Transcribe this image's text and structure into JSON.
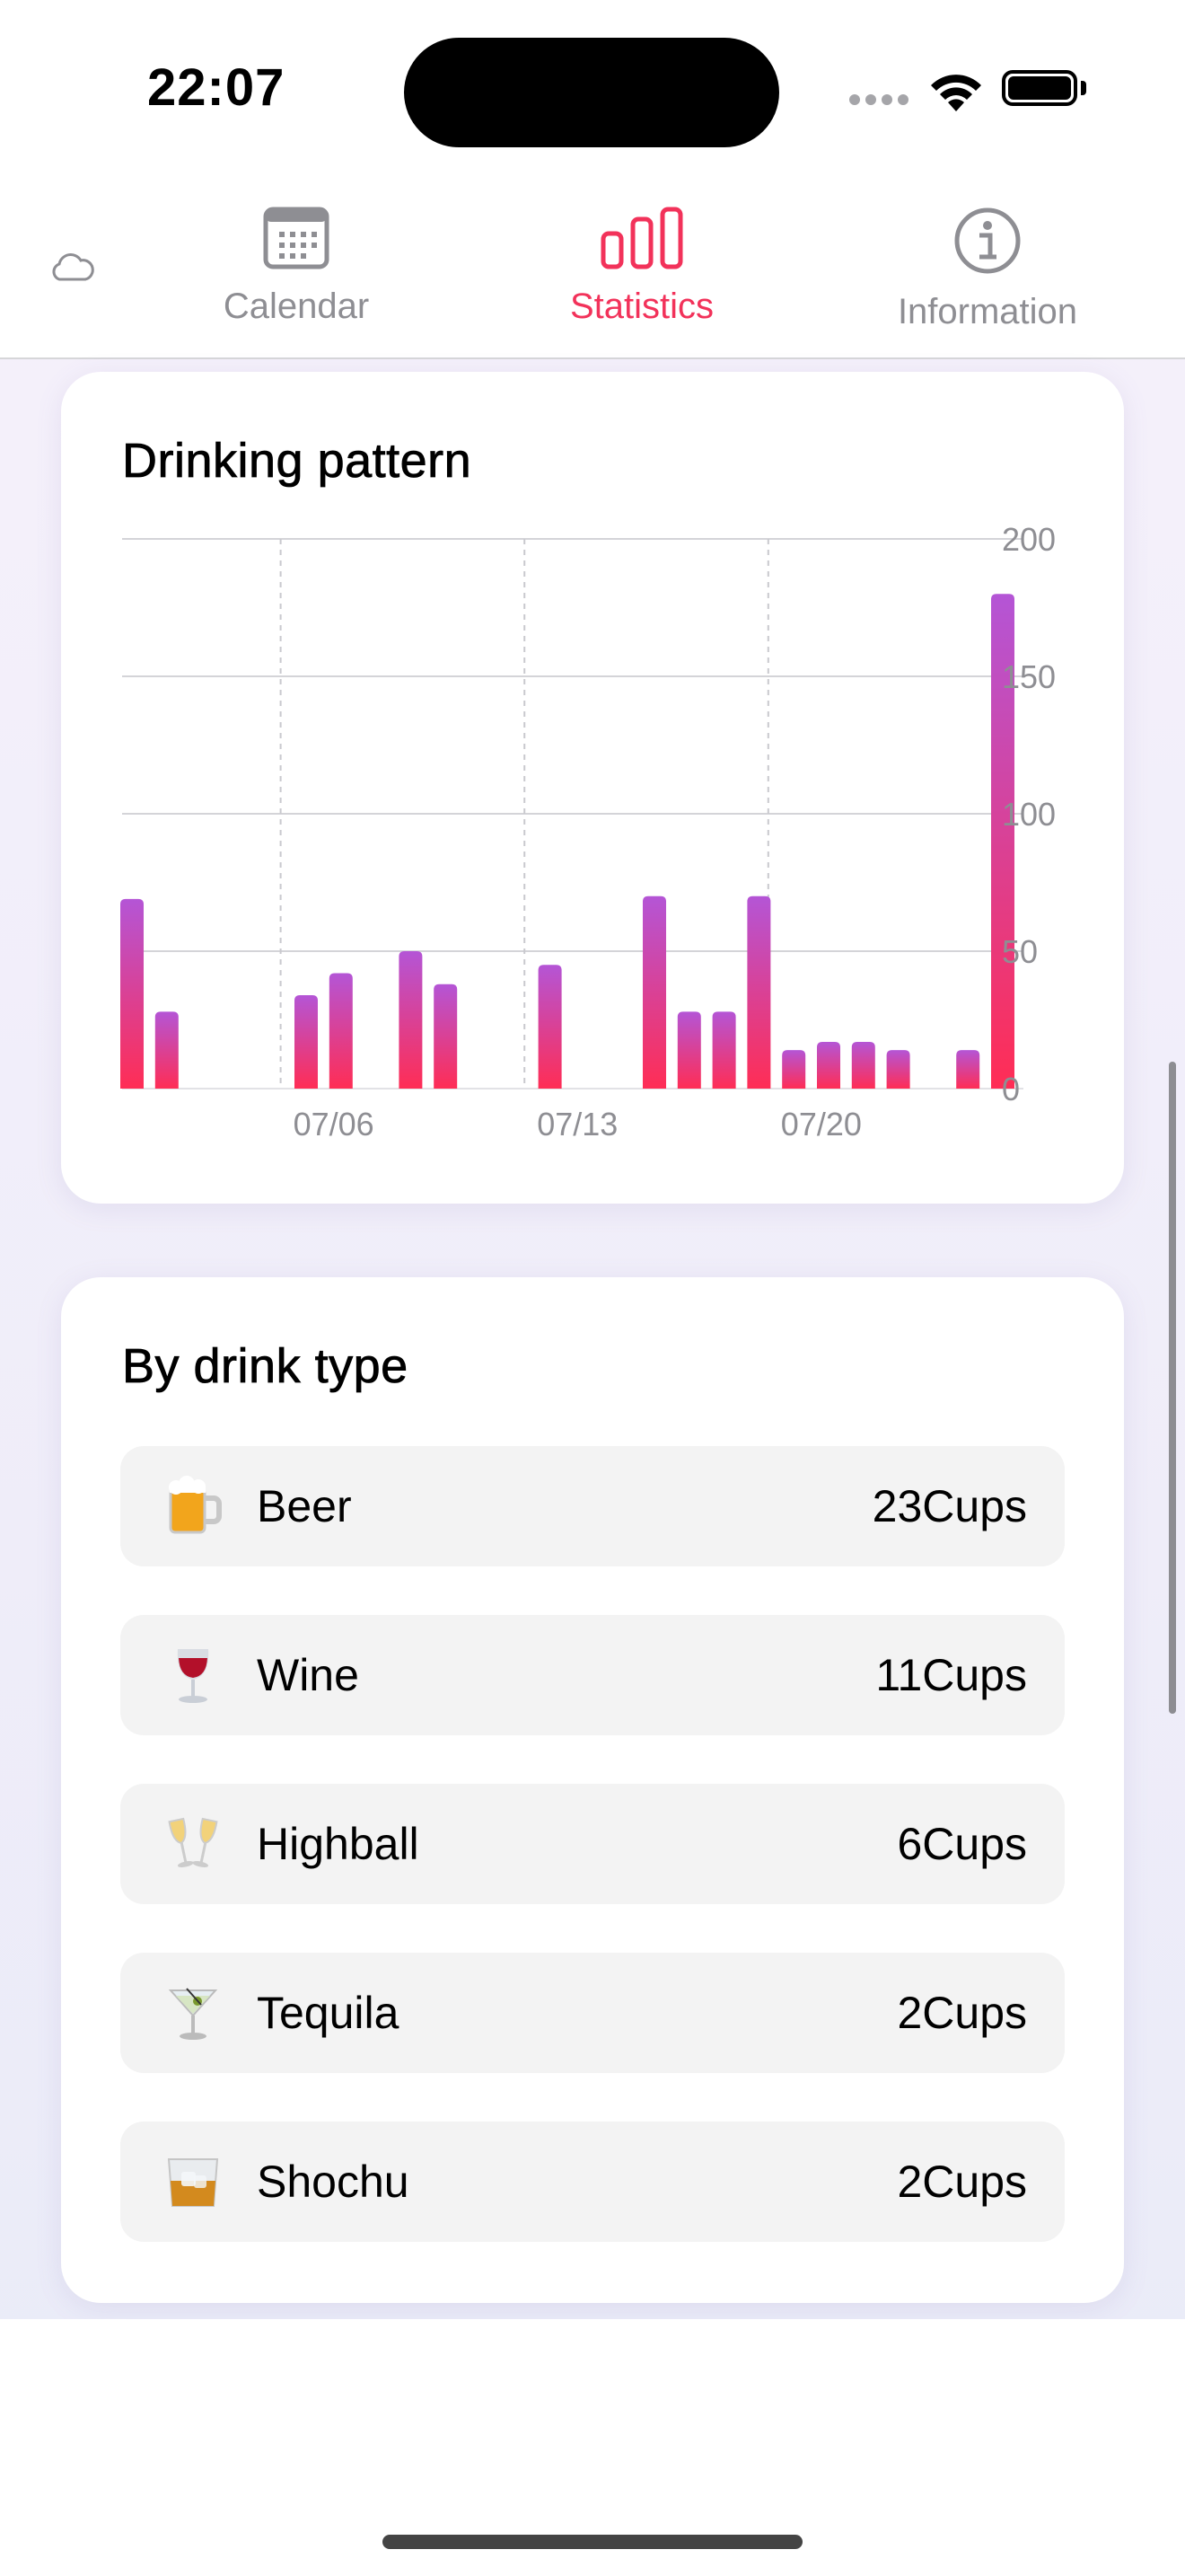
{
  "status": {
    "time": "22:07"
  },
  "tabs": [
    {
      "label": "Calendar",
      "icon": "calendar-icon",
      "active": false
    },
    {
      "label": "Statistics",
      "icon": "bar-chart-icon",
      "active": true
    },
    {
      "label": "Information",
      "icon": "info-icon",
      "active": false
    }
  ],
  "colors": {
    "accent": "#f2325a",
    "bar_top": "#b455d6",
    "bar_bottom": "#ff2d55"
  },
  "pattern": {
    "title": "Drinking pattern"
  },
  "chart_data": {
    "type": "bar",
    "title": "Drinking pattern",
    "x_tick_labels": [
      "07/06",
      "07/13",
      "07/20"
    ],
    "y_ticks": [
      "200",
      "150",
      "100",
      "50",
      "0"
    ],
    "ylim": [
      0,
      200
    ],
    "y_axis_side": "right",
    "grid": true,
    "dates": [
      "07/01",
      "07/02",
      "07/03",
      "07/04",
      "07/05",
      "07/06",
      "07/07",
      "07/08",
      "07/09",
      "07/10",
      "07/11",
      "07/12",
      "07/13",
      "07/14",
      "07/15",
      "07/16",
      "07/17",
      "07/18",
      "07/19",
      "07/20",
      "07/21",
      "07/22",
      "07/23",
      "07/24",
      "07/25",
      "07/26"
    ],
    "values": [
      69,
      28,
      0,
      0,
      0,
      34,
      42,
      0,
      50,
      38,
      0,
      0,
      45,
      0,
      0,
      70,
      28,
      28,
      70,
      14,
      17,
      17,
      14,
      0,
      14,
      180
    ]
  },
  "types": {
    "title": "By drink type",
    "items": [
      {
        "name": "Beer",
        "count": "23Cups",
        "icon": "beer-mug-icon"
      },
      {
        "name": "Wine",
        "count": "11Cups",
        "icon": "wine-glass-icon"
      },
      {
        "name": "Highball",
        "count": "6Cups",
        "icon": "clinking-glasses-icon"
      },
      {
        "name": "Tequila",
        "count": "2Cups",
        "icon": "cocktail-glass-icon"
      },
      {
        "name": "Shochu",
        "count": "2Cups",
        "icon": "tumbler-glass-icon"
      }
    ]
  }
}
